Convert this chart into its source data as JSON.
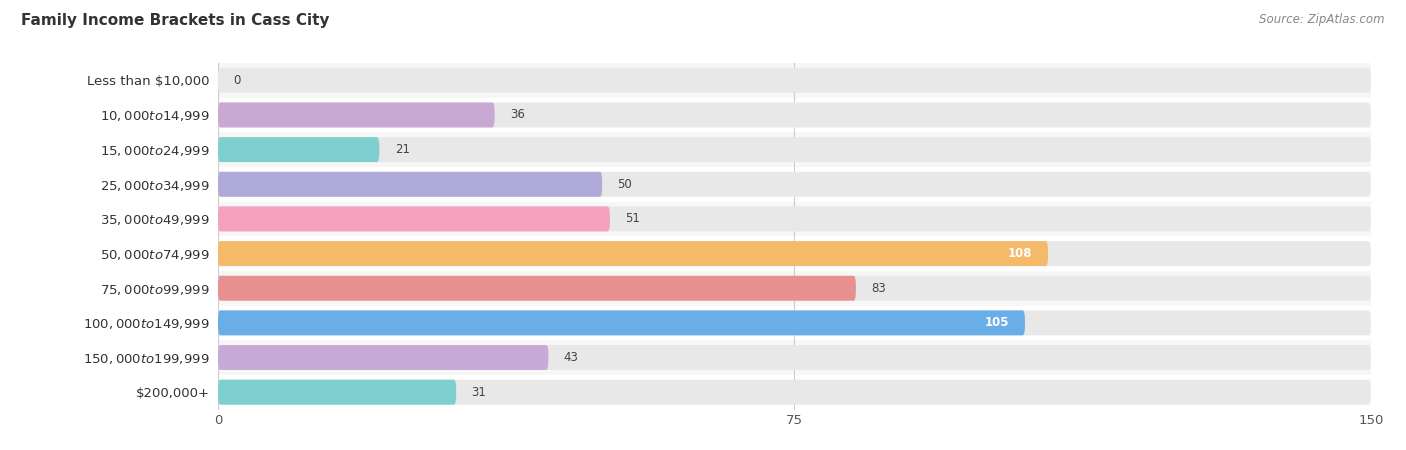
{
  "title": "Family Income Brackets in Cass City",
  "source": "Source: ZipAtlas.com",
  "categories": [
    "Less than $10,000",
    "$10,000 to $14,999",
    "$15,000 to $24,999",
    "$25,000 to $34,999",
    "$35,000 to $49,999",
    "$50,000 to $74,999",
    "$75,000 to $99,999",
    "$100,000 to $149,999",
    "$150,000 to $199,999",
    "$200,000+"
  ],
  "values": [
    0,
    36,
    21,
    50,
    51,
    108,
    83,
    105,
    43,
    31
  ],
  "bar_colors": [
    "#a8cfe8",
    "#c9a8d4",
    "#7ecfd0",
    "#b0aad8",
    "#f5a0bc",
    "#f5b96a",
    "#e89090",
    "#6aaee8",
    "#c8aad8",
    "#7ecfd0"
  ],
  "xlim": [
    0,
    150
  ],
  "xticks": [
    0,
    75,
    150
  ],
  "background_color": "#ffffff",
  "row_bg_odd": "#f7f7f7",
  "row_bg_even": "#ffffff",
  "bar_bg_color": "#e8e8e8",
  "title_fontsize": 11,
  "label_fontsize": 9.5,
  "value_fontsize": 8.5,
  "source_fontsize": 8.5
}
